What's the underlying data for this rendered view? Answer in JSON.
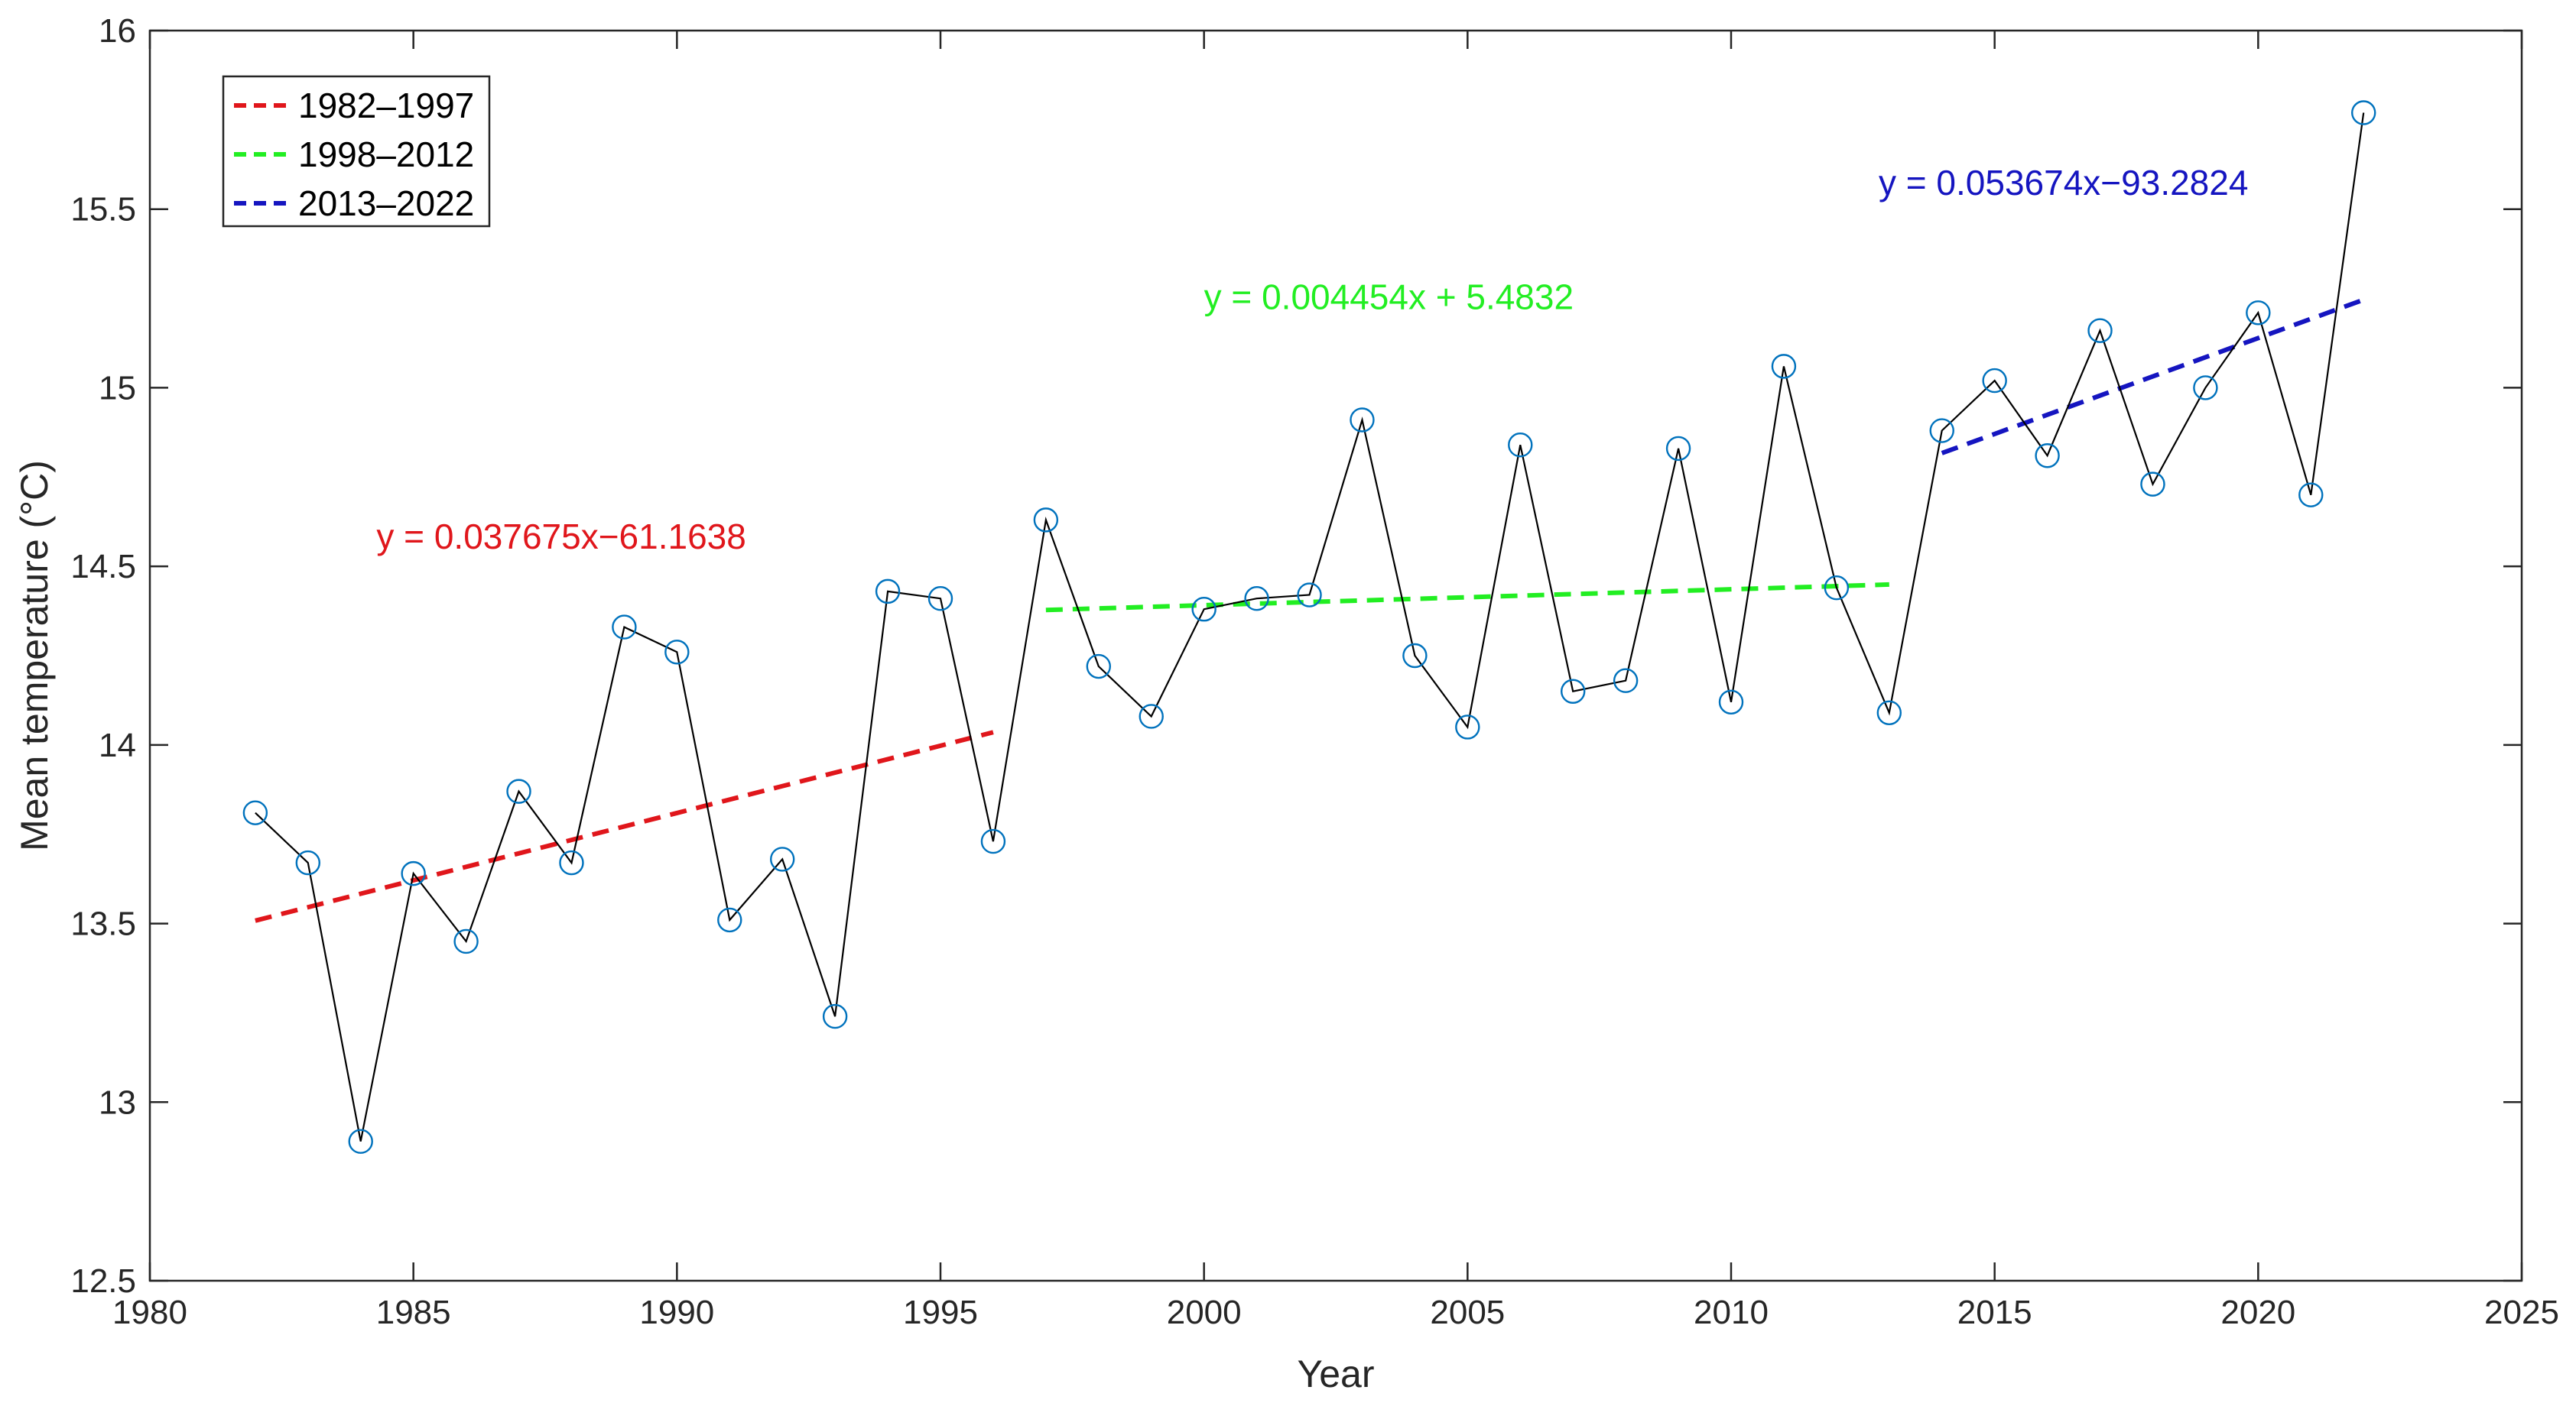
{
  "chart_data": {
    "type": "line",
    "title": "",
    "xlabel": "Year",
    "ylabel": "Mean temperature (°C)",
    "xlim": [
      1980,
      2025
    ],
    "ylim": [
      12.5,
      16
    ],
    "xticks": [
      1980,
      1985,
      1990,
      1995,
      2000,
      2005,
      2010,
      2015,
      2020,
      2025
    ],
    "yticks": [
      12.5,
      13,
      13.5,
      14,
      14.5,
      15,
      15.5,
      16
    ],
    "xtick_labels": [
      "1980",
      "1985",
      "1990",
      "1995",
      "2000",
      "2005",
      "2010",
      "2015",
      "2020",
      "2025"
    ],
    "ytick_labels": [
      "12.5",
      "13",
      "13.5",
      "14",
      "14.5",
      "15",
      "15.5",
      "16"
    ],
    "grid": false,
    "legend_position": "top-left",
    "series": [
      {
        "name": "Mean temperature",
        "line_color": "#000000",
        "marker_color": "#0072BD",
        "marker": "circle",
        "x": [
          1982,
          1983,
          1984,
          1985,
          1986,
          1987,
          1988,
          1989,
          1990,
          1991,
          1992,
          1993,
          1994,
          1995,
          1996,
          1997,
          1998,
          1999,
          2000,
          2001,
          2002,
          2003,
          2004,
          2005,
          2006,
          2007,
          2008,
          2009,
          2010,
          2011,
          2012,
          2013,
          2014,
          2015,
          2016,
          2017,
          2018,
          2019,
          2020,
          2021,
          2022
        ],
        "y": [
          13.81,
          13.67,
          12.89,
          13.64,
          13.45,
          13.87,
          13.67,
          14.33,
          14.26,
          13.51,
          13.68,
          13.24,
          14.43,
          14.41,
          13.73,
          14.63,
          14.22,
          14.08,
          14.38,
          14.41,
          14.42,
          14.91,
          14.25,
          14.05,
          14.84,
          14.15,
          14.18,
          14.83,
          14.12,
          15.06,
          14.44,
          14.09,
          14.88,
          15.02,
          14.81,
          15.16,
          14.73,
          15.0,
          15.21,
          14.7,
          15.77
        ]
      }
    ],
    "trend_lines": [
      {
        "name": "1982–1997",
        "color": "#E0161B",
        "x_start": 1982,
        "x_end": 1996,
        "slope": 0.037675,
        "intercept": -61.1638,
        "equation": "y = 0.037675x−61.1638"
      },
      {
        "name": "1998–2012",
        "color": "#22EE22",
        "x_start": 1997,
        "x_end": 2013,
        "slope": 0.004454,
        "intercept": 5.4832,
        "equation": "y = 0.004454x + 5.4832"
      },
      {
        "name": "2013–2022",
        "color": "#1515C0",
        "x_start": 2014,
        "x_end": 2022,
        "slope": 0.053674,
        "intercept": -93.2824,
        "equation": "y = 0.053674x−93.2824"
      }
    ]
  }
}
